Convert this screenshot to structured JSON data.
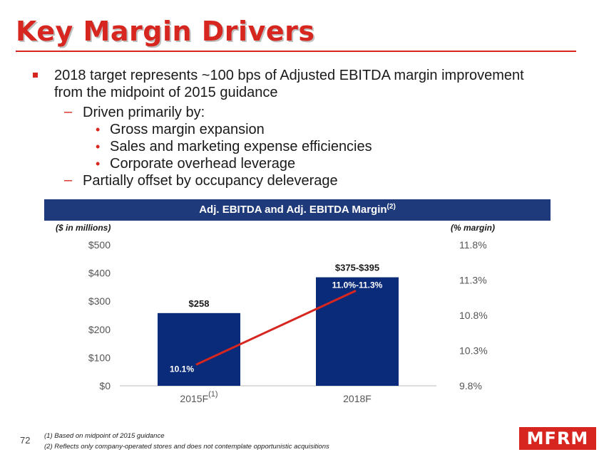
{
  "slide": {
    "title": "Key Margin Drivers",
    "page_number": "72",
    "logo": "MFRM"
  },
  "bullets": {
    "main": "2018 target represents ~100 bps of Adjusted EBITDA margin improvement from the midpoint of 2015 guidance",
    "sub1": "Driven primarily by:",
    "sub1_items": [
      "Gross margin expansion",
      "Sales and marketing expense efficiencies",
      "Corporate overhead leverage"
    ],
    "sub2": "Partially offset by occupancy deleverage"
  },
  "chart_header": {
    "title": "Adj. EBITDA and Adj. EBITDA Margin",
    "footnote_marker": "(2)"
  },
  "chart_data": {
    "type": "bar",
    "title": "Adj. EBITDA and Adj. EBITDA Margin(2)",
    "left_axis_label": "($ in millions)",
    "right_axis_label": "(% margin)",
    "categories": [
      "2015F",
      "2018F"
    ],
    "category_footnotes": [
      "(1)",
      ""
    ],
    "series": [
      {
        "name": "Adj. EBITDA",
        "type": "bar",
        "values": [
          258,
          385
        ],
        "labels": [
          "$258",
          "$375-$395"
        ],
        "color": "#0a2a7a"
      },
      {
        "name": "Adj. EBITDA Margin",
        "type": "line",
        "axis": "right",
        "values": [
          10.1,
          11.15
        ],
        "labels": [
          "10.1%",
          "11.0%-11.3%"
        ],
        "color": "#d6261f"
      }
    ],
    "ylim": [
      0,
      500
    ],
    "yticks": [
      "$0",
      "$100",
      "$200",
      "$300",
      "$400",
      "$500"
    ],
    "y2lim": [
      9.8,
      11.8
    ],
    "y2ticks": [
      "9.8%",
      "10.3%",
      "10.8%",
      "11.3%",
      "11.8%"
    ],
    "grid": false
  },
  "footnotes": [
    "(1)  Based on midpoint of 2015 guidance",
    "(2)  Reflects only company-operated stores and does not contemplate opportunistic acquisitions"
  ]
}
